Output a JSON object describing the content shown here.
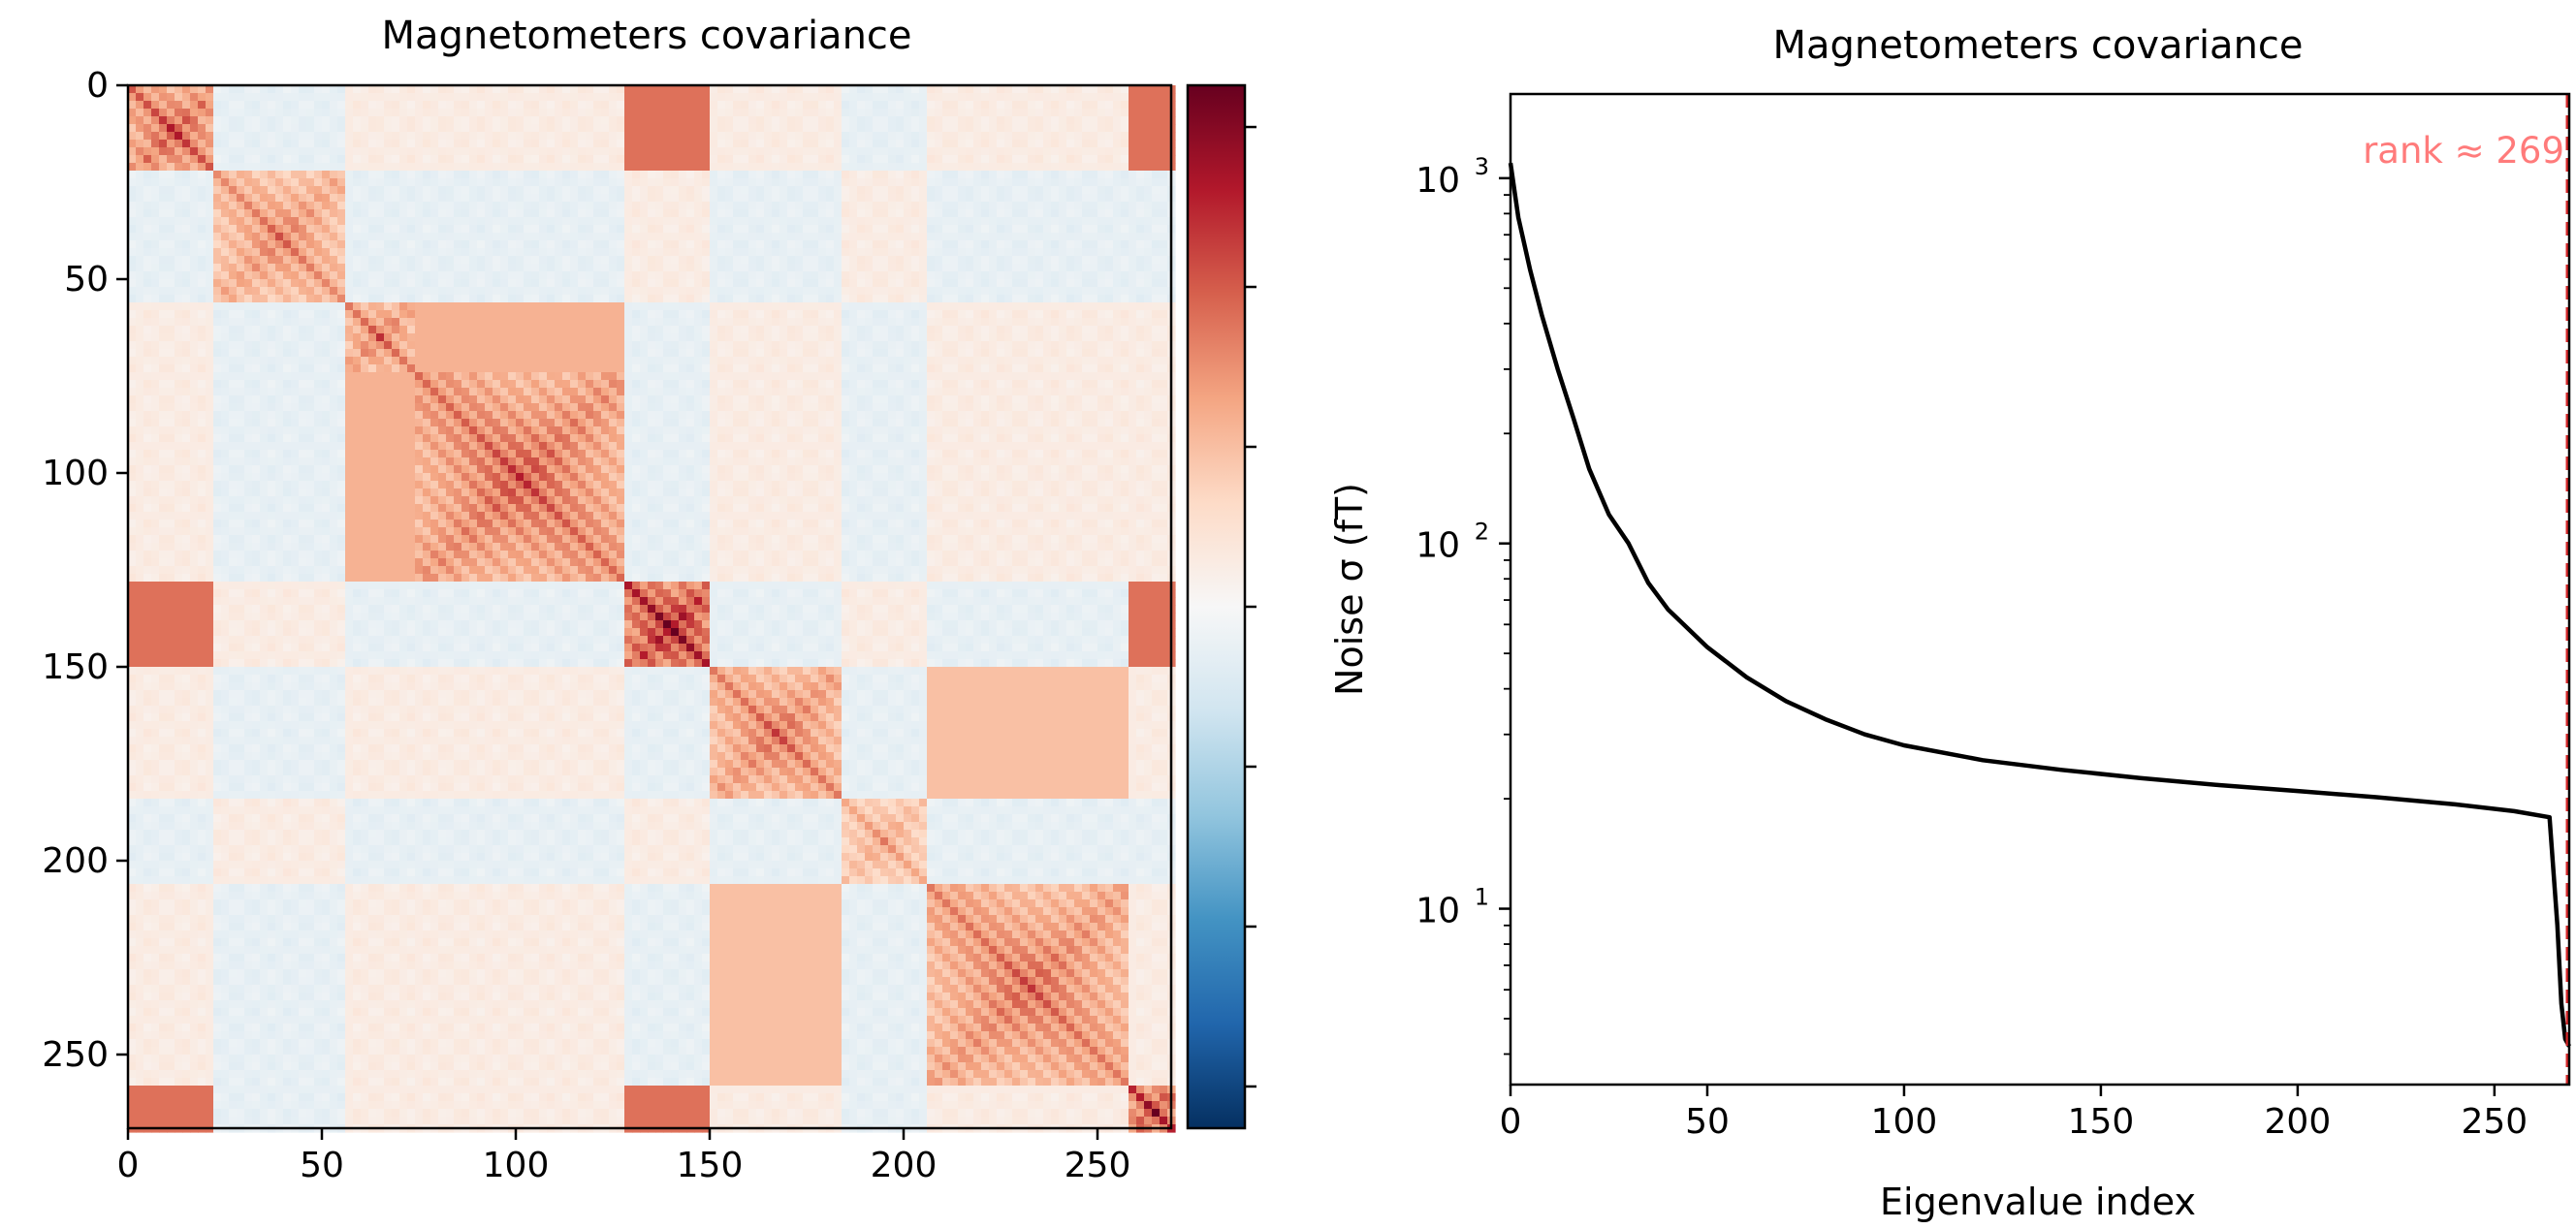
{
  "chart_data": [
    {
      "type": "heatmap",
      "title": "Magnetometers covariance",
      "x_ticks": [
        "0",
        "50",
        "100",
        "150",
        "200",
        "250"
      ],
      "x_tick_values": [
        0,
        50,
        100,
        150,
        200,
        250
      ],
      "y_ticks": [
        "0",
        "50",
        "100",
        "150",
        "200",
        "250"
      ],
      "y_tick_values": [
        0,
        50,
        100,
        150,
        200,
        250
      ],
      "xlim": [
        0,
        269
      ],
      "ylim": [
        269,
        0
      ],
      "colormap": "RdBu_r",
      "colorbar_tick_count": 7,
      "colors": {
        "low": "#053061",
        "mid": "#f7f7f7",
        "high": "#67001f"
      },
      "blocks": [
        {
          "rows": [
            0,
            22
          ],
          "strength": 0.65
        },
        {
          "rows": [
            22,
            55
          ],
          "strength": 0.5
        },
        {
          "rows": [
            55,
            73
          ],
          "strength": 0.55
        },
        {
          "rows": [
            73,
            128
          ],
          "strength": 0.6
        },
        {
          "rows": [
            128,
            150
          ],
          "strength": 0.85
        },
        {
          "rows": [
            150,
            183
          ],
          "strength": 0.55
        },
        {
          "rows": [
            183,
            205
          ],
          "strength": 0.4
        },
        {
          "rows": [
            205,
            258
          ],
          "strength": 0.55
        },
        {
          "rows": [
            258,
            269
          ],
          "strength": 0.8
        }
      ]
    },
    {
      "type": "line",
      "title": "Magnetometers covariance",
      "xlabel": "Eigenvalue index",
      "ylabel": "Noise σ (fT)",
      "yscale": "log",
      "xlim": [
        0,
        269
      ],
      "ylim": [
        3.3,
        1700
      ],
      "x_ticks": [
        "0",
        "50",
        "100",
        "150",
        "200",
        "250"
      ],
      "x_tick_values": [
        0,
        50,
        100,
        150,
        200,
        250
      ],
      "y_ticks": [
        {
          "base": "10",
          "exp": "1",
          "value": 10
        },
        {
          "base": "10",
          "exp": "2",
          "value": 100
        },
        {
          "base": "10",
          "exp": "3",
          "value": 1000
        }
      ],
      "series": [
        {
          "color": "#000000",
          "x": [
            0,
            2,
            5,
            8,
            12,
            16,
            20,
            25,
            30,
            35,
            40,
            50,
            60,
            70,
            80,
            90,
            100,
            120,
            140,
            160,
            180,
            200,
            220,
            240,
            255,
            264,
            266,
            267,
            268,
            269
          ],
          "y": [
            1100,
            780,
            560,
            420,
            300,
            220,
            160,
            120,
            100,
            78,
            66,
            52,
            43,
            37,
            33,
            30,
            28,
            25.5,
            24,
            22.8,
            21.8,
            21,
            20.2,
            19.3,
            18.5,
            17.8,
            9,
            5.5,
            4.4,
            4.2
          ]
        }
      ],
      "annotation": {
        "text": "rank ≈ 269",
        "x": 269,
        "color": "#ff7b7b"
      },
      "vline": {
        "x": 269,
        "color": "#d62728",
        "style": "dashed"
      }
    }
  ]
}
